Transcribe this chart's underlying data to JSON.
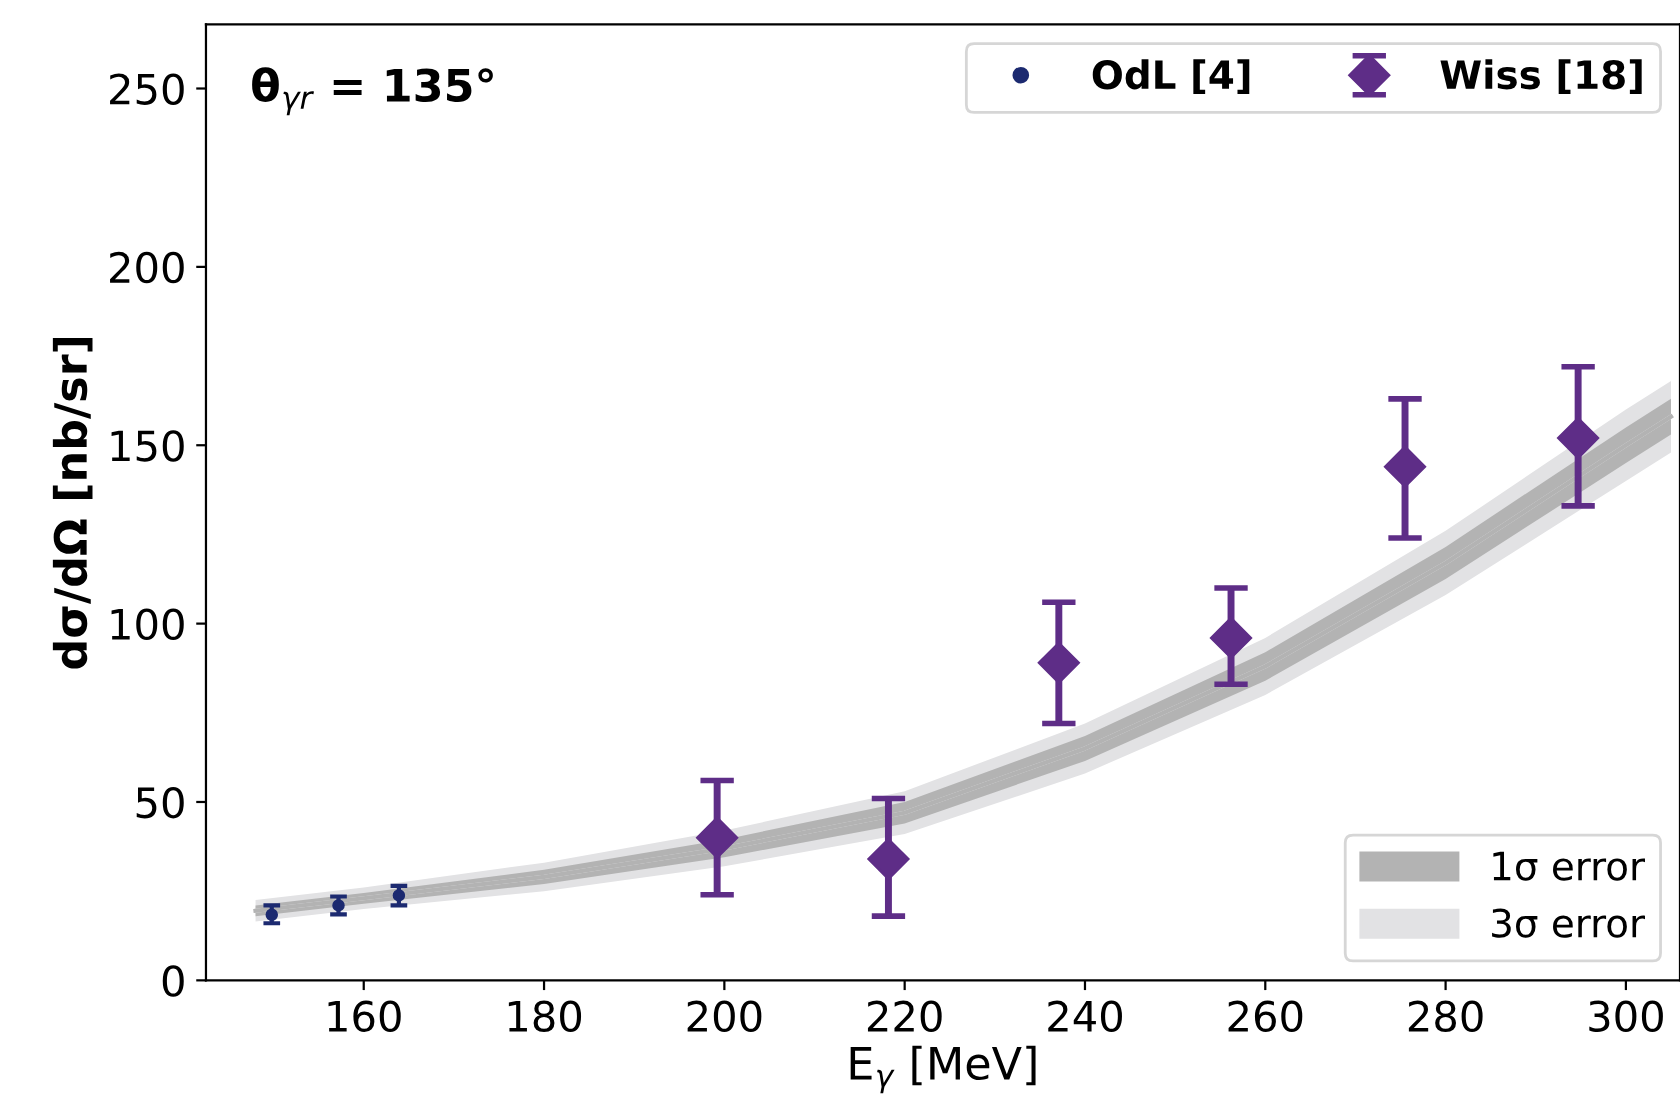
{
  "chart_data": {
    "type": "scatter",
    "xlabel": "E$_{γ}$ [MeV]",
    "ylabel": "dσ/dΩ [nb/sr]",
    "annotations": [
      "θ$_{γr}$ = 135°"
    ],
    "xlim": [
      142.5,
      306
    ],
    "xticks": [
      160,
      180,
      200,
      220,
      240,
      260,
      280,
      300
    ],
    "ylim": [
      0,
      268
    ],
    "yticks": [
      0,
      50,
      100,
      150,
      200,
      250
    ],
    "grid": false,
    "legend": "top right",
    "series": [
      {
        "name": "3σ error",
        "type": "line",
        "color": "#e2e2e4",
        "x": [
          148,
          160,
          180,
          200,
          220,
          240,
          260,
          280,
          300,
          305
        ],
        "values": [
          19.5,
          23,
          29,
          37,
          47,
          65,
          88,
          117,
          150,
          158
        ],
        "lower": [
          16.5,
          20,
          25,
          32,
          41,
          58,
          80,
          108,
          140,
          148
        ],
        "upper": [
          22.5,
          26,
          33,
          42,
          53,
          72,
          96,
          126,
          160,
          168
        ]
      },
      {
        "name": "1σ error",
        "type": "line",
        "color": "#b3b3b3",
        "x": [
          148,
          160,
          180,
          200,
          220,
          240,
          260,
          280,
          300,
          305
        ],
        "values": [
          19.5,
          23,
          29,
          37,
          47,
          65,
          88,
          117,
          150,
          158
        ],
        "lower": [
          18,
          21.5,
          27,
          34.5,
          44,
          61.5,
          84,
          112.5,
          145,
          153
        ],
        "upper": [
          21,
          24.5,
          31,
          39.5,
          50,
          68.5,
          92,
          121.5,
          155,
          163
        ]
      },
      {
        "name": "OdL [4]",
        "marker": "circle",
        "color": "#1c2a70",
        "x": [
          149.8,
          157.2,
          163.9
        ],
        "values": [
          18.4,
          21,
          23.8
        ],
        "errors": [
          [
            16,
            21
          ],
          [
            18.5,
            23.5
          ],
          [
            21,
            26.5
          ]
        ]
      },
      {
        "name": "Wiss [18]",
        "marker": "diamond",
        "color": "#5e2d87",
        "x": [
          199.2,
          218.2,
          237.1,
          256.2,
          275.5,
          294.7
        ],
        "values": [
          40,
          34,
          89,
          96,
          144,
          152
        ],
        "errors": [
          [
            24,
            56
          ],
          [
            18,
            51
          ],
          [
            72,
            106
          ],
          [
            83,
            110
          ],
          [
            124,
            163
          ],
          [
            133,
            172
          ]
        ]
      }
    ]
  }
}
